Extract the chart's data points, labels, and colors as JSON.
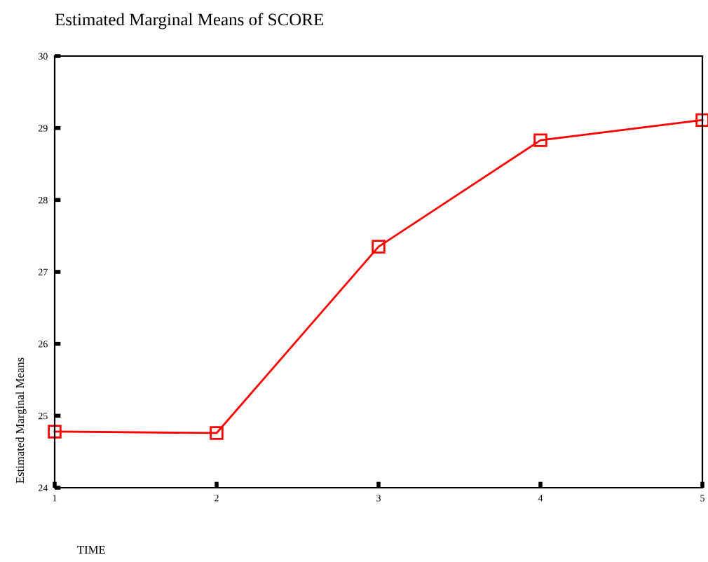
{
  "chart_data": {
    "type": "line",
    "title": "Estimated Marginal Means of SCORE",
    "xlabel": "TIME",
    "ylabel": "Estimated Marginal Means",
    "x": [
      1,
      2,
      3,
      4,
      5
    ],
    "series": [
      {
        "color": "#ff0000",
        "values": [
          24.78,
          24.76,
          27.35,
          28.83,
          29.11
        ]
      }
    ],
    "xlim": [
      1,
      5
    ],
    "xticks": [
      1,
      2,
      3,
      4,
      5
    ],
    "ylim": [
      24,
      30
    ],
    "yticks": [
      24,
      25,
      26,
      27,
      28,
      29,
      30
    ],
    "marker": "square",
    "line_style": "solid",
    "grid": false,
    "legend": false
  }
}
